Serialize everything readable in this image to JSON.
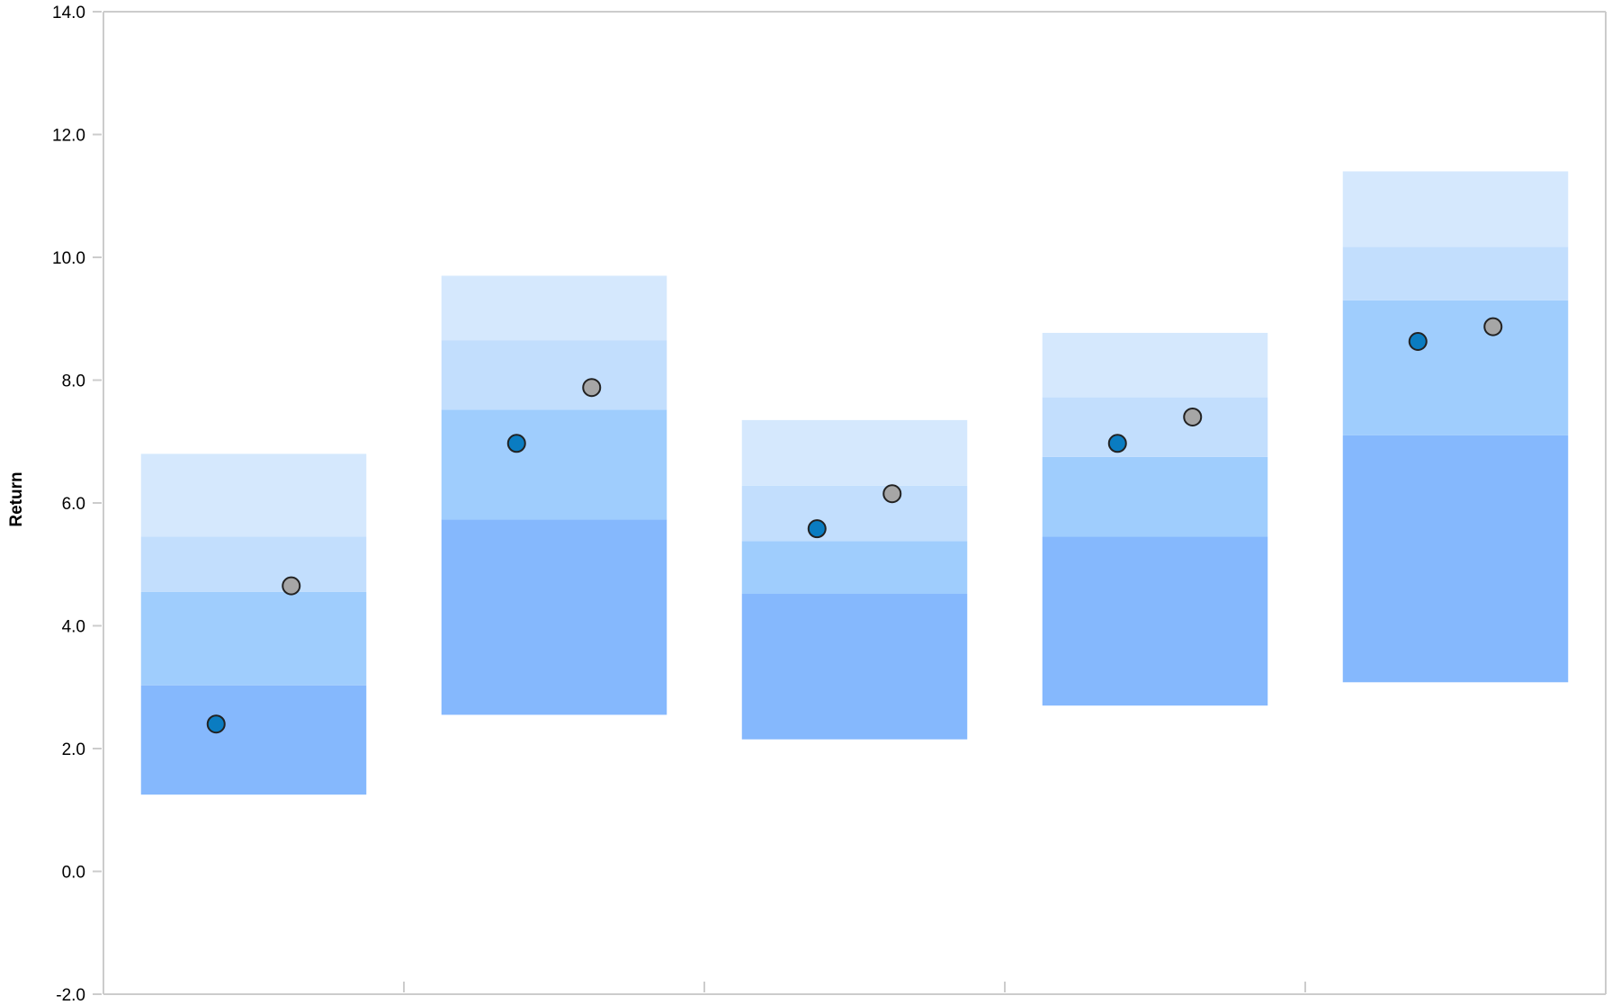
{
  "chart_data": {
    "type": "scatter",
    "title": "",
    "xlabel": "",
    "ylabel": "Return",
    "ylim": [
      -2.0,
      14.0
    ],
    "yticks": [
      -2.0,
      0.0,
      2.0,
      4.0,
      6.0,
      8.0,
      10.0,
      12.0,
      14.0
    ],
    "ytick_labels": [
      "-2.0",
      "0.0",
      "2.0",
      "4.0",
      "6.0",
      "8.0",
      "10.0",
      "12.0",
      "14.0"
    ],
    "grid": false,
    "legend": "none",
    "groups": [
      {
        "ranges": [
          1.25,
          3.03,
          4.55,
          5.45,
          6.8
        ],
        "points": [
          2.4,
          4.65
        ]
      },
      {
        "ranges": [
          2.55,
          5.73,
          7.52,
          8.65,
          9.7
        ],
        "points": [
          6.97,
          7.88
        ]
      },
      {
        "ranges": [
          2.15,
          4.52,
          5.38,
          6.28,
          7.35
        ],
        "points": [
          5.58,
          6.15
        ]
      },
      {
        "ranges": [
          2.7,
          5.45,
          6.75,
          7.72,
          8.77
        ],
        "points": [
          6.97,
          7.4
        ]
      },
      {
        "ranges": [
          3.08,
          7.1,
          9.3,
          10.17,
          11.4
        ],
        "points": [
          8.63,
          8.87
        ]
      }
    ],
    "colors": {
      "band_colors": [
        "#85b8fd",
        "#9fcdfd",
        "#c2defd",
        "#d5e8fd"
      ],
      "point_colors": [
        "#0a7cc1",
        "#a6a6a6"
      ],
      "point_stroke": "#222222",
      "axis": "#cccccc"
    }
  }
}
